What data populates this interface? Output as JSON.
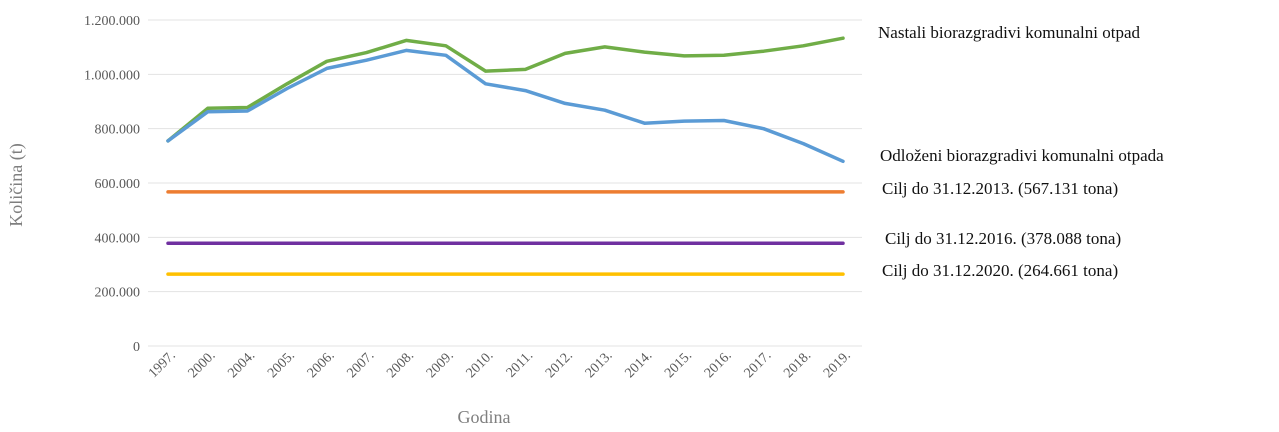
{
  "chart_data": {
    "type": "line",
    "title": "",
    "xlabel": "Godina",
    "ylabel": "Količina (t)",
    "ylim": [
      0,
      1200000
    ],
    "yticks": [
      "0",
      "200.000",
      "400.000",
      "600.000",
      "800.000",
      "1.000.000",
      "1.200.000"
    ],
    "ytick_values": [
      0,
      200000,
      400000,
      600000,
      800000,
      1000000,
      1200000
    ],
    "grid": true,
    "categories": [
      "1997.",
      "2000.",
      "2004.",
      "2005.",
      "2006.",
      "2007.",
      "2008.",
      "2009.",
      "2010.",
      "2011.",
      "2012.",
      "2013.",
      "2014.",
      "2015.",
      "2016.",
      "2017.",
      "2018.",
      "2019."
    ],
    "series": [
      {
        "name": "Nastali biorazgradivi komunalni otpad",
        "color": "#70ad47",
        "values": [
          755000,
          875000,
          878000,
          965000,
          1048000,
          1080000,
          1125000,
          1105000,
          1012000,
          1018000,
          1077000,
          1101000,
          1082000,
          1068000,
          1070000,
          1085000,
          1105000,
          1133000
        ]
      },
      {
        "name": "Odloženi biorazgradivi komunalni otpada",
        "color": "#5b9bd5",
        "values": [
          755000,
          862000,
          865000,
          948000,
          1022000,
          1052000,
          1088000,
          1070000,
          965000,
          940000,
          893000,
          868000,
          820000,
          828000,
          830000,
          800000,
          745000,
          680000
        ]
      },
      {
        "name": "Cilj do 31.12.2013. (567.131 tona)",
        "color": "#ed7d31",
        "values": [
          567131,
          567131,
          567131,
          567131,
          567131,
          567131,
          567131,
          567131,
          567131,
          567131,
          567131,
          567131,
          567131,
          567131,
          567131,
          567131,
          567131,
          567131
        ]
      },
      {
        "name": "Cilj do 31.12.2016. (378.088 tona)",
        "color": "#7030a0",
        "values": [
          378088,
          378088,
          378088,
          378088,
          378088,
          378088,
          378088,
          378088,
          378088,
          378088,
          378088,
          378088,
          378088,
          378088,
          378088,
          378088,
          378088,
          378088
        ]
      },
      {
        "name": "Cilj do 31.12.2020. (264.661 tona)",
        "color": "#ffc000",
        "values": [
          264661,
          264661,
          264661,
          264661,
          264661,
          264661,
          264661,
          264661,
          264661,
          264661,
          264661,
          264661,
          264661,
          264661,
          264661,
          264661,
          264661,
          264661
        ]
      }
    ]
  }
}
